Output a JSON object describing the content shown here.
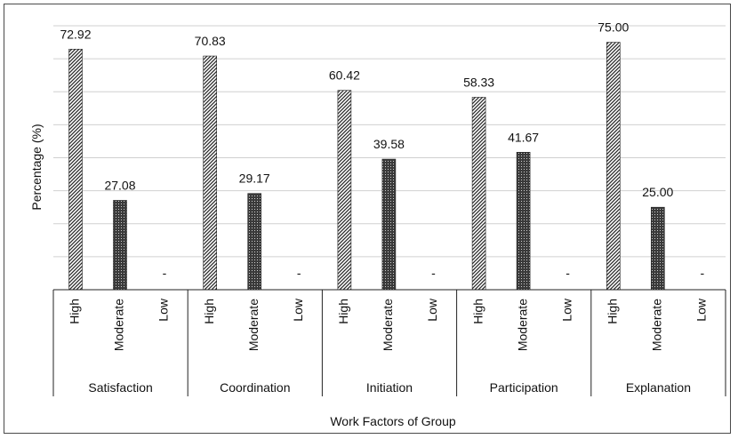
{
  "chart_data": {
    "type": "bar",
    "xlabel": "Work Factors of Group",
    "ylabel": "Percentage (%)",
    "ylim": [
      0,
      80
    ],
    "grid": true,
    "groups": [
      "Satisfaction",
      "Coordination",
      "Initiation",
      "Participation",
      "Explanation"
    ],
    "levels": [
      "High",
      "Moderate",
      "Low"
    ],
    "series": [
      {
        "values": [
          72.92,
          70.83,
          60.42,
          58.33,
          75.0
        ],
        "labels": [
          "72.92",
          "70.83",
          "60.42",
          "58.33",
          "75.00"
        ]
      },
      {
        "values": [
          27.08,
          29.17,
          39.58,
          41.67,
          25.0
        ],
        "labels": [
          "27.08",
          "29.17",
          "39.58",
          "41.67",
          "25.00"
        ]
      },
      {
        "values": [
          0,
          0,
          0,
          0,
          0
        ],
        "labels": [
          "-",
          "-",
          "-",
          "-",
          "-"
        ]
      }
    ]
  }
}
